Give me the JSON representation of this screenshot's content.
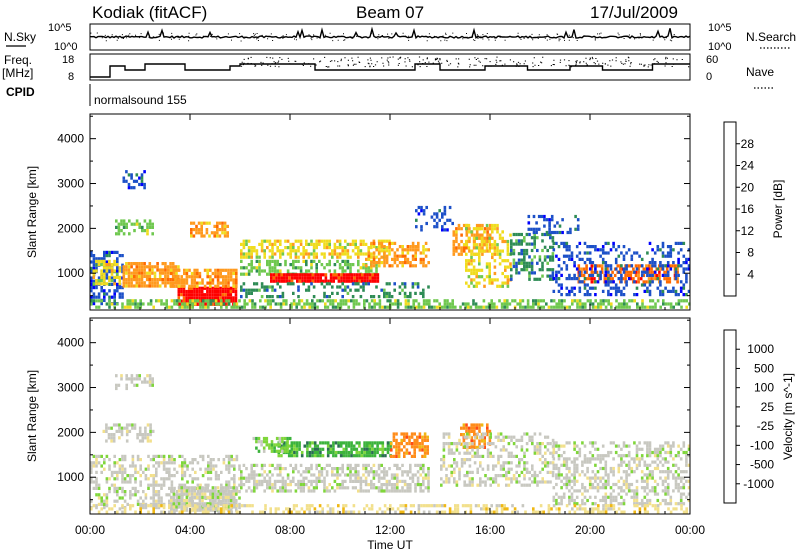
{
  "header": {
    "station": "Kodiak (fitACF)",
    "beam": "Beam 07",
    "date": "17/Jul/2009"
  },
  "status_panel": {
    "nsky_label": "N.Sky",
    "nsearch_label": "N.Search",
    "freq_label_1": "Freq.",
    "freq_label_2": "[MHz]",
    "nave_label": "Nave",
    "cpid_label": "CPID",
    "cpid_value": "normalsound 155",
    "noise_ticks": [
      "10^5",
      "10^0"
    ],
    "freq_ticks": [
      "18",
      "8"
    ],
    "nave_ticks": [
      "60",
      "0"
    ]
  },
  "colors": {
    "power": [
      "#0000ff",
      "#1c50c8",
      "#2e8c55",
      "#6fc84f",
      "#f0dc1e",
      "#ff9a1e",
      "#ff6a00",
      "#ff0000"
    ],
    "velocity": [
      "#1f3fb3",
      "#2b6e52",
      "#3cb33c",
      "#7fd63a",
      "#c8c8c0",
      "#f2e08c",
      "#f0b814",
      "#ff8c1a",
      "#ff4a14",
      "#ff0000"
    ]
  },
  "chart_data": [
    {
      "type": "heatmap",
      "name": "power",
      "ylabel": "Slant Range [km]",
      "xlabel": "",
      "x_ticks": [
        "00:00",
        "04:00",
        "08:00",
        "12:00",
        "16:00",
        "20:00",
        "00:00"
      ],
      "xlim_hours": [
        0,
        24
      ],
      "y_ticks": [
        1000,
        2000,
        3000,
        4000
      ],
      "ylim": [
        180,
        4550
      ],
      "colorbar": {
        "label": "Power [dB]",
        "ticks": [
          4,
          8,
          12,
          16,
          20,
          24,
          28
        ],
        "range": [
          0,
          32
        ]
      },
      "regions": [
        {
          "x": [
            0.0,
            1.3
          ],
          "y": [
            300,
            1500
          ],
          "level": 1,
          "density": 0.55
        },
        {
          "x": [
            0.1,
            1.2
          ],
          "y": [
            800,
            1300
          ],
          "level": 4,
          "density": 0.6
        },
        {
          "x": [
            1.3,
            3.5
          ],
          "y": [
            700,
            1250
          ],
          "level": 5,
          "density": 0.8
        },
        {
          "x": [
            3.5,
            5.8
          ],
          "y": [
            320,
            700
          ],
          "level": 7,
          "density": 0.95
        },
        {
          "x": [
            3.2,
            5.8
          ],
          "y": [
            700,
            1100
          ],
          "level": 5,
          "density": 0.75
        },
        {
          "x": [
            1.0,
            2.5
          ],
          "y": [
            1900,
            2200
          ],
          "level": 3,
          "density": 0.5
        },
        {
          "x": [
            4.0,
            5.5
          ],
          "y": [
            1850,
            2150
          ],
          "level": 5,
          "density": 0.6
        },
        {
          "x": [
            1.3,
            2.2
          ],
          "y": [
            2900,
            3300
          ],
          "level": 1,
          "density": 0.4
        },
        {
          "x": [
            6.0,
            12.0
          ],
          "y": [
            1350,
            1750
          ],
          "level": 4,
          "density": 0.6
        },
        {
          "x": [
            6.0,
            11.5
          ],
          "y": [
            1000,
            1300
          ],
          "level": 3,
          "density": 0.5
        },
        {
          "x": [
            7.2,
            11.5
          ],
          "y": [
            800,
            1000
          ],
          "level": 7,
          "density": 0.95
        },
        {
          "x": [
            6.0,
            13.5
          ],
          "y": [
            450,
            800
          ],
          "level": 2,
          "density": 0.35
        },
        {
          "x": [
            11.0,
            13.5
          ],
          "y": [
            1200,
            1700
          ],
          "level": 5,
          "density": 0.55
        },
        {
          "x": [
            14.5,
            16.0
          ],
          "y": [
            1400,
            2100
          ],
          "level": 5,
          "density": 0.6
        },
        {
          "x": [
            15.0,
            16.8
          ],
          "y": [
            700,
            2100
          ],
          "level": 4,
          "density": 0.45
        },
        {
          "x": [
            16.8,
            18.5
          ],
          "y": [
            900,
            1900
          ],
          "level": 2,
          "density": 0.4
        },
        {
          "x": [
            19.5,
            23.5
          ],
          "y": [
            800,
            1200
          ],
          "level": 6,
          "density": 0.6
        },
        {
          "x": [
            18.5,
            24.0
          ],
          "y": [
            500,
            1700
          ],
          "level": 1,
          "density": 0.35
        },
        {
          "x": [
            0.0,
            24.0
          ],
          "y": [
            250,
            420
          ],
          "level": 3,
          "density": 0.6
        },
        {
          "x": [
            13.0,
            14.5
          ],
          "y": [
            2000,
            2500
          ],
          "level": 1,
          "density": 0.3
        },
        {
          "x": [
            17.5,
            19.5
          ],
          "y": [
            1900,
            2300
          ],
          "level": 1,
          "density": 0.35
        }
      ]
    },
    {
      "type": "heatmap",
      "name": "velocity",
      "ylabel": "Slant Range [km]",
      "xlabel": "Time UT",
      "x_ticks": [
        "00:00",
        "04:00",
        "08:00",
        "12:00",
        "16:00",
        "20:00",
        "00:00"
      ],
      "xlim_hours": [
        0,
        24
      ],
      "y_ticks": [
        1000,
        2000,
        3000,
        4000
      ],
      "ylim": [
        180,
        4550
      ],
      "colorbar": {
        "label": "Velocity [m s^-1]",
        "ticks": [
          "1000",
          "500",
          "100",
          "25",
          "-25",
          "-100",
          "-500",
          "-1000"
        ]
      },
      "regions": [
        {
          "x": [
            0.0,
            6.0
          ],
          "y": [
            300,
            1500
          ],
          "level": 4,
          "density": 0.45
        },
        {
          "x": [
            3.2,
            5.8
          ],
          "y": [
            300,
            800
          ],
          "level": 4,
          "density": 0.85
        },
        {
          "x": [
            6.0,
            13.5
          ],
          "y": [
            700,
            1300
          ],
          "level": 4,
          "density": 0.55
        },
        {
          "x": [
            7.5,
            12.0
          ],
          "y": [
            1450,
            1800
          ],
          "level": 2,
          "density": 0.75
        },
        {
          "x": [
            6.5,
            8.0
          ],
          "y": [
            1600,
            1900
          ],
          "level": 3,
          "density": 0.6
        },
        {
          "x": [
            12.0,
            13.5
          ],
          "y": [
            1500,
            2000
          ],
          "level": 7,
          "density": 0.65
        },
        {
          "x": [
            14.8,
            16.0
          ],
          "y": [
            1700,
            2200
          ],
          "level": 7,
          "density": 0.65
        },
        {
          "x": [
            14.0,
            18.5
          ],
          "y": [
            800,
            2000
          ],
          "level": 4,
          "density": 0.4
        },
        {
          "x": [
            18.5,
            24.0
          ],
          "y": [
            400,
            1800
          ],
          "level": 4,
          "density": 0.45
        },
        {
          "x": [
            0.5,
            2.5
          ],
          "y": [
            1800,
            2200
          ],
          "level": 4,
          "density": 0.4
        },
        {
          "x": [
            1.0,
            2.5
          ],
          "y": [
            3000,
            3300
          ],
          "level": 4,
          "density": 0.35
        },
        {
          "x": [
            0.0,
            24.0
          ],
          "y": [
            200,
            400
          ],
          "level": 5,
          "density": 0.4
        }
      ]
    }
  ]
}
